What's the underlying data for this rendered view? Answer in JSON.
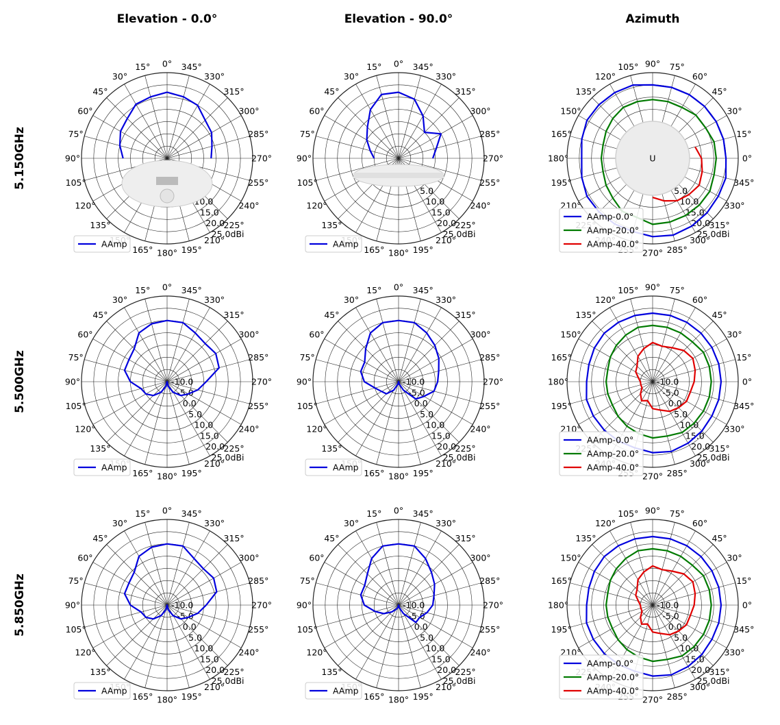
{
  "figure": {
    "column_titles": [
      "Elevation - 0.0°",
      "Elevation - 90.0°",
      "Azimuth"
    ],
    "row_titles": [
      "5.150GHz",
      "5.500GHz",
      "5.850GHz"
    ],
    "angle_labels": [
      "0°",
      "15°",
      "30°",
      "45°",
      "60°",
      "75°",
      "90°",
      "105°",
      "120°",
      "135°",
      "150°",
      "165°",
      "180°",
      "195°",
      "210°",
      "225°",
      "240°",
      "255°",
      "270°",
      "285°",
      "300°",
      "315°",
      "330°",
      "345°"
    ],
    "azimuth_angle_labels": [
      "90°",
      "75°",
      "60°",
      "45°",
      "30°",
      "15°",
      "0°",
      "345°",
      "330°",
      "315°",
      "300°",
      "285°",
      "270°",
      "255°",
      "240°",
      "225°",
      "210°",
      "195°",
      "180°",
      "165°",
      "150°",
      "135°",
      "120°",
      "105°"
    ],
    "radial_labels_top": [
      "5.0",
      "10.0",
      "15.0",
      "20.0",
      "25.0dBi"
    ],
    "radial_labels_other": [
      "-10.0",
      "-5.0",
      "0.0",
      "5.0",
      "10.0",
      "15.0",
      "20.0",
      "25.0dBi"
    ],
    "product_images": [
      "Access point, bottom view",
      "Access point, side view",
      "Access point, top view"
    ],
    "colors": {
      "blue": "#0000dd",
      "green": "#007a00",
      "red": "#e00000",
      "grid": "#222222"
    }
  },
  "chart_data": [
    {
      "type": "polar",
      "row": 0,
      "col": 0,
      "rlim": [
        -10,
        25
      ],
      "legend_placement": "lower-left",
      "series": [
        {
          "name": "AAmp",
          "color": "#0000dd",
          "values": [
            17,
            16,
            15.5,
            13,
            12,
            10,
            8,
            null,
            null,
            null,
            null,
            null,
            null,
            null,
            null,
            null,
            null,
            null,
            8,
            9,
            11,
            12,
            15,
            16
          ]
        }
      ]
    },
    {
      "type": "polar",
      "row": 0,
      "col": 1,
      "rlim": [
        -10,
        25
      ],
      "legend_placement": "lower-left",
      "series": [
        {
          "name": "AAmp",
          "color": "#0000dd",
          "values": [
            17,
            17,
            13,
            8,
            5,
            2,
            0,
            null,
            null,
            null,
            null,
            null,
            null,
            null,
            null,
            null,
            null,
            null,
            4,
            6,
            10,
            5,
            10,
            15
          ]
        }
      ]
    },
    {
      "type": "polar",
      "row": 0,
      "col": 2,
      "rlim": [
        -10,
        25
      ],
      "legend_placement": "lower-left",
      "series": [
        {
          "name": "AAmp-0.0°",
          "color": "#0000dd",
          "values": [
            20,
            21,
            21,
            21.5,
            22,
            22.5,
            22,
            21,
            21,
            21,
            21,
            20,
            19,
            20,
            21,
            21,
            21,
            21,
            20,
            20,
            20,
            20,
            20,
            20
          ]
        },
        {
          "name": "AAmp-20.0°",
          "color": "#007a00",
          "values": [
            16,
            16,
            17,
            17,
            17,
            17,
            17,
            15,
            15,
            13,
            12,
            11,
            11,
            11,
            12,
            13,
            14,
            14,
            14,
            14,
            14,
            15,
            15,
            16
          ]
        },
        {
          "name": "AAmp-40.0°",
          "color": "#e00000",
          "values": [
            10,
            11,
            12,
            11,
            10,
            8,
            6,
            null,
            null,
            null,
            null,
            null,
            null,
            null,
            null,
            null,
            null,
            null,
            null,
            null,
            null,
            null,
            null,
            8
          ]
        }
      ]
    },
    {
      "type": "polar",
      "row": 1,
      "col": 0,
      "rlim": [
        -10,
        25
      ],
      "legend_placement": "lower-left",
      "series": [
        {
          "name": "AAmp",
          "color": "#0000dd",
          "values": [
            15,
            14.5,
            13,
            9,
            8,
            8,
            5,
            1,
            0,
            -2,
            -5,
            -8,
            -10,
            -8,
            -5,
            -2,
            0,
            3,
            6,
            12,
            13,
            12,
            13,
            15
          ]
        }
      ]
    },
    {
      "type": "polar",
      "row": 1,
      "col": 1,
      "rlim": [
        -10,
        25
      ],
      "legend_placement": "lower-left",
      "series": [
        {
          "name": "AAmp",
          "color": "#0000dd",
          "values": [
            15,
            15,
            13,
            9,
            6,
            6,
            4,
            0,
            -2,
            -3,
            -6,
            -9,
            -10,
            -9,
            -6,
            0,
            2,
            5,
            6,
            7,
            9,
            11,
            13,
            15
          ]
        }
      ]
    },
    {
      "type": "polar",
      "row": 1,
      "col": 2,
      "rlim": [
        -10,
        25
      ],
      "legend_placement": "lower-left",
      "series": [
        {
          "name": "AAmp-0.0°",
          "color": "#0000dd",
          "values": [
            18,
            18,
            18,
            18.5,
            19,
            19.5,
            19,
            18,
            18,
            18,
            18,
            18,
            17,
            17,
            17.5,
            18,
            18,
            18,
            18,
            18,
            18,
            18,
            18,
            18
          ]
        },
        {
          "name": "AAmp-20.0°",
          "color": "#007a00",
          "values": [
            14,
            14,
            14,
            14,
            14,
            13,
            13,
            12,
            11,
            10,
            9,
            9,
            9,
            9,
            10,
            11,
            12,
            13,
            13,
            13,
            13,
            13,
            14,
            14
          ]
        },
        {
          "name": "AAmp-40.0°",
          "color": "#e00000",
          "values": [
            7,
            6,
            6,
            5,
            4,
            2,
            1,
            -2,
            -1,
            -3,
            -5,
            -5,
            -5,
            -4,
            -2,
            -1,
            2,
            4,
            6,
            5,
            6,
            8,
            9,
            8
          ]
        }
      ]
    },
    {
      "type": "polar",
      "row": 2,
      "col": 0,
      "rlim": [
        -10,
        25
      ],
      "legend_placement": "lower-left",
      "series": [
        {
          "name": "AAmp",
          "color": "#0000dd",
          "values": [
            15,
            14.5,
            13,
            9,
            8,
            8,
            5,
            1,
            0,
            -2,
            -5,
            -8,
            -10,
            -8,
            -5,
            -2,
            0,
            3,
            6,
            11,
            12,
            11,
            12,
            15
          ]
        }
      ]
    },
    {
      "type": "polar",
      "row": 2,
      "col": 1,
      "rlim": [
        -10,
        25
      ],
      "legend_placement": "lower-left",
      "series": [
        {
          "name": "AAmp",
          "color": "#0000dd",
          "values": [
            15,
            15,
            12,
            8,
            6,
            6,
            4,
            0,
            -3,
            -6,
            -8,
            -9,
            -10,
            -9,
            -6,
            0,
            0,
            2,
            4,
            5,
            7,
            9,
            12,
            15
          ]
        }
      ]
    },
    {
      "type": "polar",
      "row": 2,
      "col": 2,
      "rlim": [
        -10,
        25
      ],
      "legend_placement": "lower-left",
      "series": [
        {
          "name": "AAmp-0.0°",
          "color": "#0000dd",
          "values": [
            18,
            18,
            18,
            18.5,
            19,
            19.5,
            19,
            18,
            18,
            18,
            18,
            18,
            17,
            17,
            17.5,
            18,
            18,
            18,
            18,
            18,
            18,
            18,
            18,
            18
          ]
        },
        {
          "name": "AAmp-20.0°",
          "color": "#007a00",
          "values": [
            14,
            14,
            14,
            14,
            14,
            13,
            13,
            12,
            11,
            10,
            9,
            9,
            9,
            9,
            10,
            11,
            12,
            13,
            13,
            13,
            13,
            13,
            14,
            14
          ]
        },
        {
          "name": "AAmp-40.0°",
          "color": "#e00000",
          "values": [
            7,
            6,
            6,
            5,
            4,
            2,
            1,
            -2,
            -1,
            -3,
            -5,
            -5,
            -5,
            -4,
            -2,
            -1,
            2,
            4,
            6,
            5,
            6,
            8,
            9,
            8
          ]
        }
      ]
    }
  ]
}
